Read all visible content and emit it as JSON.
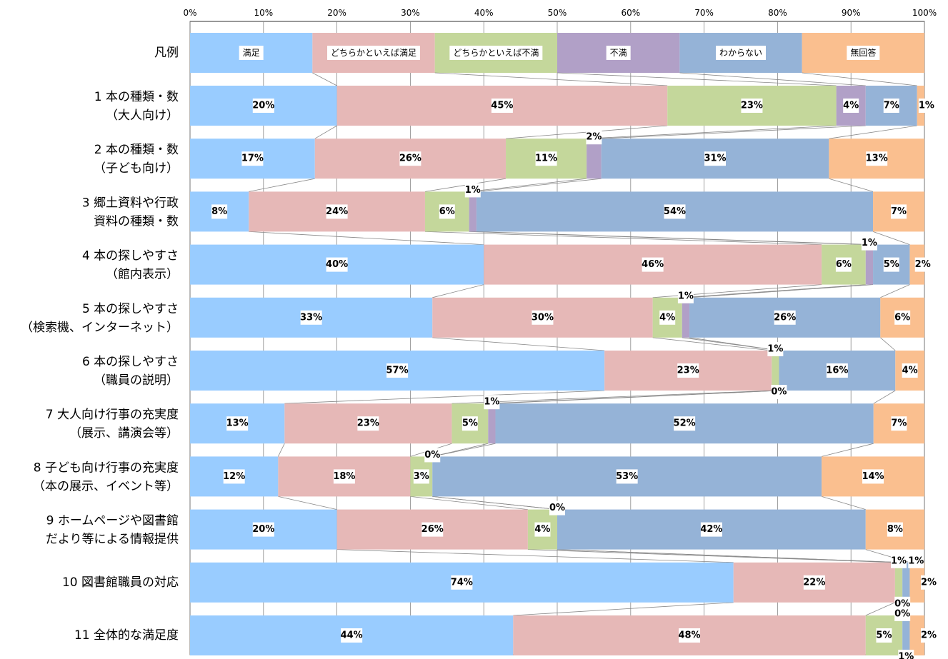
{
  "chart_data": {
    "type": "bar",
    "stacked": true,
    "orientation": "horizontal",
    "xlim": [
      0,
      100
    ],
    "x_ticks": [
      "0%",
      "10%",
      "20%",
      "30%",
      "40%",
      "50%",
      "60%",
      "70%",
      "80%",
      "90%",
      "100%"
    ],
    "grid": true,
    "legend": {
      "row_label": "凡例",
      "items": [
        "満足",
        "どちらかといえば満足",
        "どちらかといえば不満",
        "不満",
        "わからない",
        "無回答"
      ]
    },
    "colors": [
      "#99ccff",
      "#e6b8b7",
      "#c4d79b",
      "#b1a0c7",
      "#95b3d7",
      "#fabf8f"
    ],
    "categories": [
      [
        "1 本の種類・数",
        "（大人向け）"
      ],
      [
        "2 本の種類・数",
        "（子ども向け）"
      ],
      [
        "3 郷土資料や行政",
        "資料の種類・数"
      ],
      [
        "4 本の探しやすさ",
        "（館内表示）"
      ],
      [
        "5 本の探しやすさ",
        "（検索機、インターネット）"
      ],
      [
        "6 本の探しやすさ",
        "（職員の説明）"
      ],
      [
        "7 大人向け行事の充実度",
        "（展示、講演会等）"
      ],
      [
        "8 子ども向け行事の充実度",
        "（本の展示、イベント等）"
      ],
      [
        "9 ホームページや図書館",
        "だより等による情報提供"
      ],
      [
        "10 図書館職員の対応"
      ],
      [
        "11 全体的な満足度"
      ]
    ],
    "series": [
      {
        "name": "満足",
        "values": [
          20,
          17,
          8,
          40,
          33,
          57,
          13,
          12,
          20,
          74,
          44
        ]
      },
      {
        "name": "どちらかといえば満足",
        "values": [
          45,
          26,
          24,
          46,
          30,
          23,
          23,
          18,
          26,
          22,
          48
        ]
      },
      {
        "name": "どちらかといえば不満",
        "values": [
          23,
          11,
          6,
          6,
          4,
          1,
          5,
          3,
          4,
          1,
          5
        ]
      },
      {
        "name": "不満",
        "values": [
          4,
          2,
          1,
          1,
          1,
          0,
          1,
          0,
          0,
          0,
          0
        ]
      },
      {
        "name": "わからない",
        "values": [
          7,
          31,
          54,
          5,
          26,
          16,
          52,
          53,
          42,
          1,
          1
        ]
      },
      {
        "name": "無回答",
        "values": [
          1,
          13,
          7,
          2,
          6,
          4,
          7,
          14,
          8,
          2,
          2
        ]
      }
    ],
    "value_labels": [
      [
        "20%",
        "45%",
        "23%",
        "4%",
        "7%",
        "1%"
      ],
      [
        "17%",
        "26%",
        "11%",
        "2%",
        "31%",
        "13%"
      ],
      [
        "8%",
        "24%",
        "6%",
        "1%",
        "54%",
        "7%"
      ],
      [
        "40%",
        "46%",
        "6%",
        "1%",
        "5%",
        "2%"
      ],
      [
        "33%",
        "30%",
        "4%",
        "1%",
        "26%",
        "6%"
      ],
      [
        "57%",
        "23%",
        "1%",
        "0%",
        "16%",
        "4%"
      ],
      [
        "13%",
        "23%",
        "5%",
        "1%",
        "52%",
        "7%"
      ],
      [
        "12%",
        "18%",
        "3%",
        "0%",
        "53%",
        "14%"
      ],
      [
        "20%",
        "26%",
        "4%",
        "0%",
        "42%",
        "8%"
      ],
      [
        "74%",
        "22%",
        "1%",
        "0%",
        "1%",
        "2%"
      ],
      [
        "44%",
        "48%",
        "5%",
        "0%",
        "1%",
        "2%"
      ]
    ]
  }
}
